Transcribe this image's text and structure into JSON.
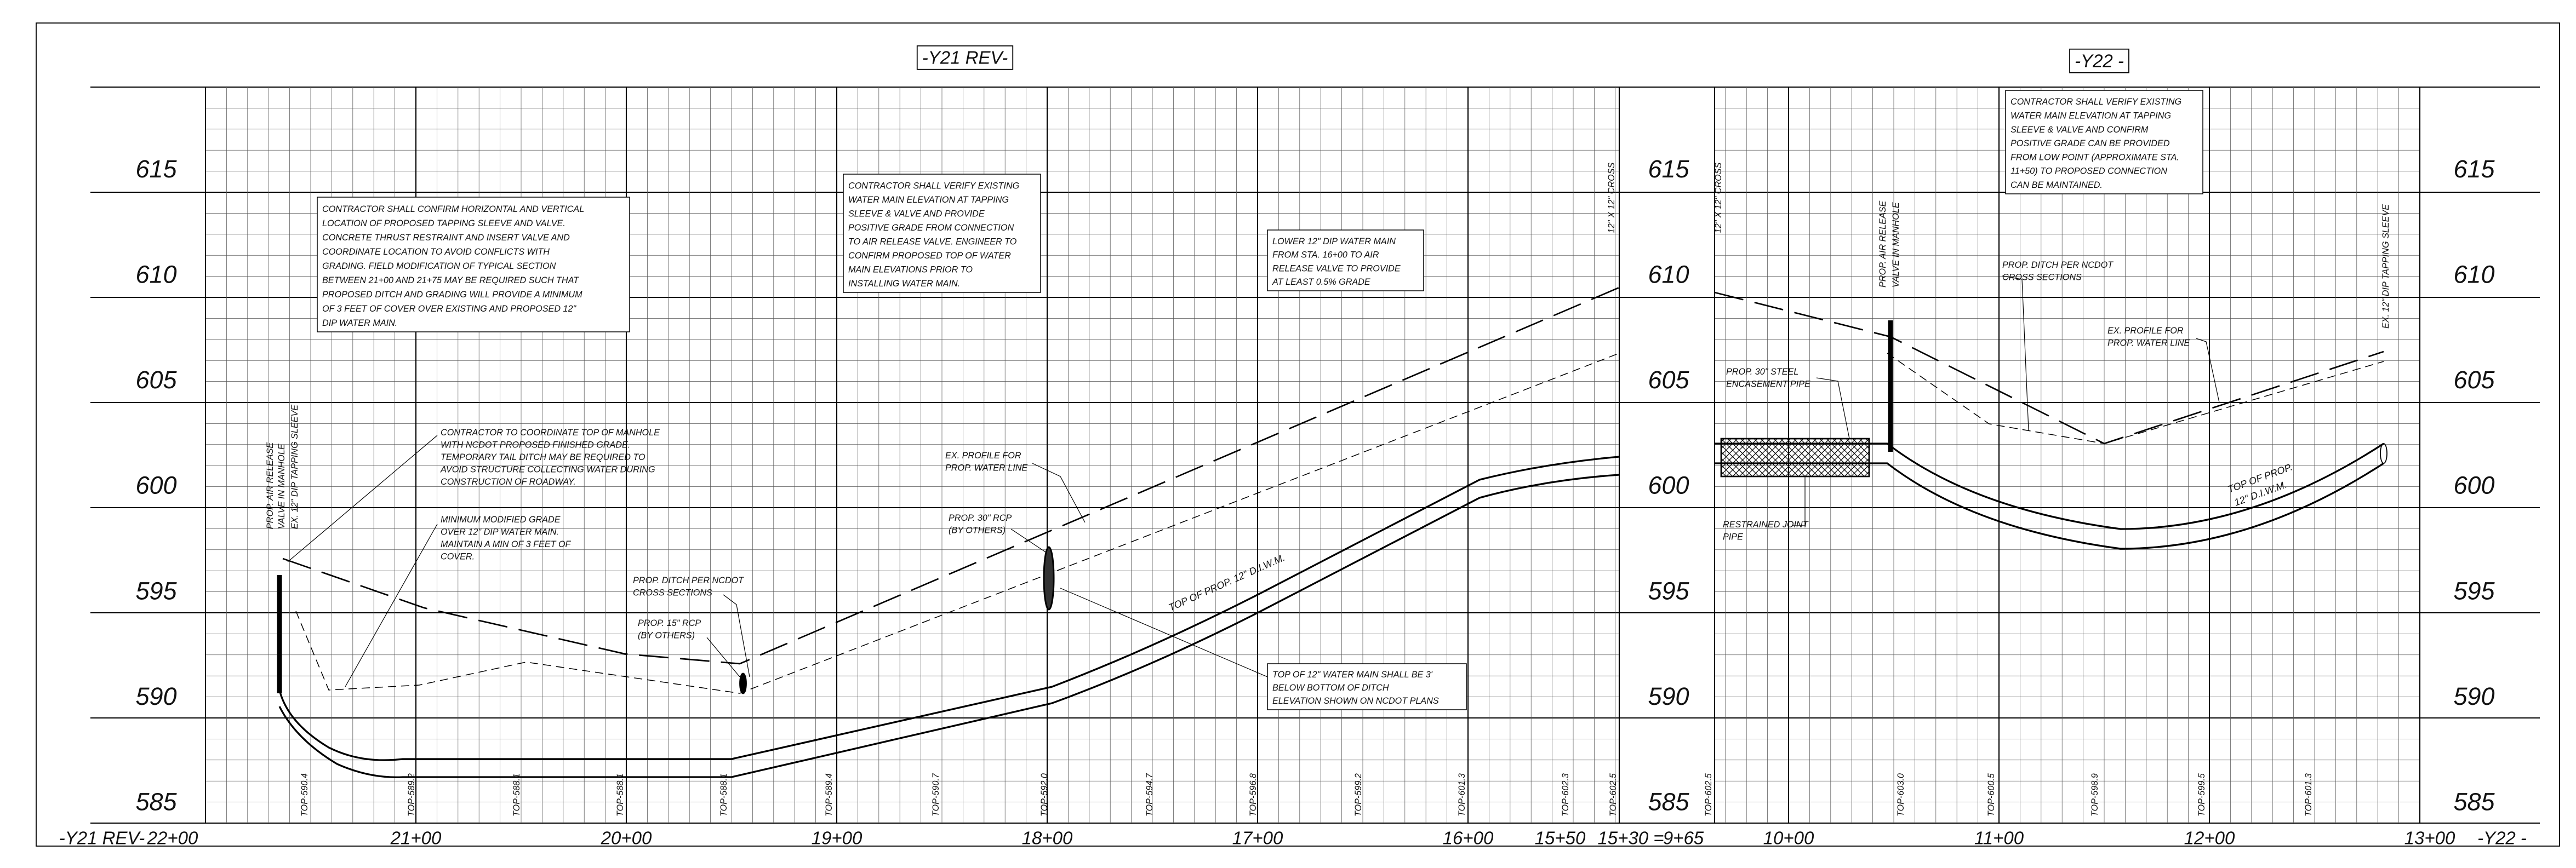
{
  "titles": [
    "-Y21 REV-",
    "-Y22 -"
  ],
  "elevations": [
    615,
    610,
    605,
    600,
    595,
    590,
    585
  ],
  "stations": [
    "-Y21 REV-",
    "22+00",
    "21+00",
    "20+00",
    "19+00",
    "18+00",
    "17+00",
    "16+00",
    "15+50",
    "15+30 =",
    "9+65",
    "10+00",
    "11+00",
    "12+00",
    "13+00",
    "-Y22 -"
  ],
  "notes": [
    {
      "lines": [
        "CONTRACTOR SHALL CONFIRM HORIZONTAL AND VERTICAL",
        "LOCATION OF PROPOSED TAPPING SLEEVE AND VALVE.",
        "CONCRETE THRUST RESTRAINT AND INSERT VALVE AND",
        "COORDINATE LOCATION TO AVOID CONFLICTS WITH",
        "GRADING. FIELD MODIFICATION OF TYPICAL SECTION",
        "BETWEEN 21+00 AND 21+75 MAY BE REQUIRED SUCH THAT",
        "PROPOSED DITCH AND GRADING WILL PROVIDE A MINIMUM",
        "OF 3 FEET OF COVER OVER EXISTING AND PROPOSED 12\"",
        "DIP WATER MAIN."
      ]
    },
    {
      "lines": [
        "CONTRACTOR SHALL VERIFY EXISTING",
        "WATER MAIN ELEVATION AT TAPPING",
        "SLEEVE & VALVE AND PROVIDE",
        "POSITIVE GRADE FROM CONNECTION",
        "TO AIR RELEASE VALVE. ENGINEER TO",
        "CONFIRM PROPOSED TOP OF WATER",
        "MAIN ELEVATIONS PRIOR TO",
        "INSTALLING WATER MAIN."
      ]
    },
    {
      "lines": [
        "LOWER 12\" DIP WATER MAIN",
        "FROM STA. 16+00 TO AIR",
        "RELEASE VALVE TO PROVIDE",
        "AT LEAST 0.5% GRADE"
      ]
    },
    {
      "lines": [
        "CONTRACTOR SHALL VERIFY EXISTING",
        "WATER MAIN ELEVATION AT TAPPING",
        "SLEEVE & VALVE AND CONFIRM",
        "POSITIVE GRADE CAN BE PROVIDED",
        "FROM LOW POINT (APPROXIMATE STA.",
        "11+50) TO PROPOSED CONNECTION",
        "CAN BE MAINTAINED."
      ]
    },
    {
      "lines": [
        "TOP OF 12\" WATER MAIN SHALL BE 3'",
        "BELOW BOTTOM OF DITCH",
        "ELEVATION SHOWN ON NCDOT PLANS"
      ]
    }
  ],
  "callouts": [
    {
      "lines": [
        "CONTRACTOR TO COORDINATE TOP OF MANHOLE",
        "WITH NCDOT PROPOSED FINISHED GRADE.",
        "TEMPORARY TAIL DITCH MAY BE REQUIRED TO",
        "AVOID STRUCTURE COLLECTING WATER DURING",
        "CONSTRUCTION OF ROADWAY."
      ]
    },
    {
      "lines": [
        "MINIMUM MODIFIED GRADE",
        "OVER 12\" DIP WATER MAIN.",
        "MAINTAIN A MIN OF 3 FEET OF",
        "COVER."
      ]
    },
    {
      "lines": [
        "PROP. DITCH PER NCDOT",
        "CROSS SECTIONS"
      ]
    },
    {
      "lines": [
        "PROP. 15\" RCP",
        "(BY OTHERS)"
      ]
    },
    {
      "lines": [
        "PROP. 30\" RCP",
        "(BY OTHERS)"
      ]
    },
    {
      "lines": [
        "EX. PROFILE FOR",
        "PROP. WATER LINE"
      ]
    },
    {
      "lines": [
        "PROP. DITCH PER NCDOT",
        "CROSS SECTIONS"
      ]
    },
    {
      "lines": [
        "EX. PROFILE FOR",
        "PROP. WATER LINE"
      ]
    },
    {
      "lines": [
        "PROP. 30\" STEEL",
        "ENCASEMENT PIPE"
      ]
    },
    {
      "lines": [
        "RESTRAINED JOINT",
        "PIPE"
      ]
    }
  ],
  "pipe_labels": [
    "TOP OF PROP. 12\" D.I.W.M.",
    "TOP OF PROP.",
    "12\" D.I.W.M."
  ],
  "vertical_labels": [
    "PROP. AIR RELEASE",
    "VALVE IN MANHOLE",
    "EX. 12\" DIP TAPPING SLEEVE",
    "12\" X 12\" CROSS",
    "12\" X 12\" CROSS",
    "PROP. AIR RELEASE",
    "VALVE IN MANHOLE",
    "EX. 12\" DIP TAPPING SLEEVE"
  ],
  "top_labels": [
    "TOP-590.4",
    "TOP-589.2",
    "TOP-588.1",
    "TOP-588.1",
    "TOP-588.1",
    "TOP-589.4",
    "TOP-590.7",
    "TOP-592.0",
    "TOP-594.7",
    "TOP-596.8",
    "TOP-599.2",
    "TOP-601.3",
    "TOP-602.3",
    "TOP-602.5",
    "TOP-602.5",
    "TOP-603.0",
    "TOP-600.5",
    "TOP-598.9",
    "TOP-599.5",
    "TOP-601.3"
  ]
}
